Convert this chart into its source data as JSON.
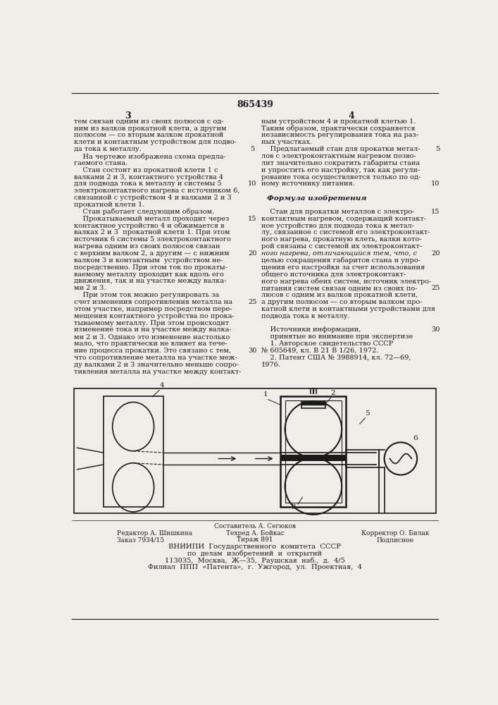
{
  "patent_number": "865439",
  "page_numbers": [
    "3",
    "4"
  ],
  "bg_color": "#f0ede8",
  "text_color": "#1a1a1a",
  "left_column_text": [
    "тем связан одним из своих полюсов с од-",
    "ним из валков прокатной клети, а другим",
    "полюсом — со вторым валком прокатной",
    "клети и контактным устройством для подво-",
    "да тока к металлу.",
    "    На чертеже изображена схема предла-",
    "гаемого стана.",
    "    Стан состоит из прокатной клети 1 с",
    "валками 2 и 3, контактного устройства 4",
    "для подвода тока к металлу и системы 5",
    "электроконтактного нагрева с источником 6,",
    "связанной с устройством 4 и валками 2 и 3",
    "прокатной клети 1.",
    "    Стан работает следующим образом.",
    "    Прокатываемый металл проходит через",
    "контактное устройство 4 и обжимается в",
    "валках 2 и 3  прокатной клети 1. При этом",
    "источник 6 системы 5 электроконтактного",
    "нагрева одним из своих полюсов связан",
    "с верхним валком 2, а другим — с нижним",
    "валком 3 и контактным  устройством не-",
    "посредственно. При этом ток по прокаты-",
    "ваемому металлу проходит как вдоль его",
    "движения, так и на участке между валка-",
    "ми 2 и 3.",
    "    При этом ток можно регулировать за",
    "счет изменения сопротивления металла на",
    "этом участке, например посредством пере-",
    "мещения контактного устройства по прока-",
    "тываемому металлу. При этом происходит",
    "изменение тока и на участке между валка-",
    "ми 2 и 3. Однако это изменение настолько",
    "мало, что практически не влияет на тече-",
    "ние процесса прокатки. Это связано с тем,",
    "что сопротивление металла на участке меж-",
    "ду валками 2 и 3 значительно меньше сопро-",
    "тивления металла на участке между контакт-"
  ],
  "right_column_text": [
    "ным устройством 4 и прокатной клетью 1.",
    "Таким образом, практически сохраняется",
    "независимость регулирования тока на раз-",
    "ных участках.",
    "    Предлагаемый стан для прокатки метал-",
    "лов с электроконтактным нагревом позво-",
    "лит значительно сократить габариты стана",
    "и упростить его настройку, так как регули-",
    "рование тока осуществляется только по од-",
    "ному источнику питания.",
    "",
    "    Формула изобретения",
    "",
    "    Стан для прокатки металлов с электро-",
    "контактным нагревом, содержащий контакт-",
    "ное устройство для подвода тока к метал-",
    "лу, связанное с системой его электроконтакт-",
    "ного нагрева, прокатную клеть, валки кото-",
    "рой связаны с системой их электроконтакт-",
    "ного нагрева, отличающийся тем, что, с",
    "целью сокращения габаритов стана и упро-",
    "щения его настройки за счет использования",
    "общего источника для электроконтакт-",
    "ного нагрева обеих систем, источник электро-",
    "питания систем связан одним из своих по-",
    "люсов с одним из валков прокатной клети,",
    "а другим полюсом — со вторым валком про-",
    "катной клети и контактными устройствами для",
    "подвода тока к металлу.",
    "",
    "    Источники информации,",
    "    принятые во внимание при экспертизе",
    "    1. Авторское свидетельство СССР",
    "№ 605649, кл. В 21 В 1/26, 1972.",
    "    2. Патент США № 3988914, кл. 72—69,",
    "1976."
  ]
}
